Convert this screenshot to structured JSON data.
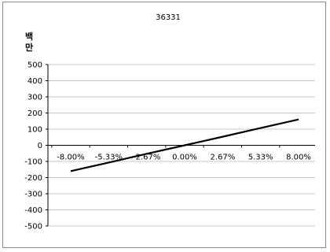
{
  "chart_data": {
    "type": "line",
    "title": "36331",
    "ylabel": [
      "백",
      "만"
    ],
    "xlabel": "",
    "ylim": [
      -500,
      500
    ],
    "y_ticks": [
      500,
      400,
      300,
      200,
      100,
      0,
      -100,
      -200,
      -300,
      -400,
      -500
    ],
    "x_categories": [
      "-8.00%",
      "-5.33%",
      "-2.67%",
      "0.00%",
      "2.67%",
      "5.33%",
      "8.00%"
    ],
    "series": [
      {
        "values": [
          -160,
          -107,
          -53,
          0,
          53,
          107,
          160
        ],
        "color": "#000000"
      }
    ],
    "grid": true,
    "legend": "none"
  }
}
